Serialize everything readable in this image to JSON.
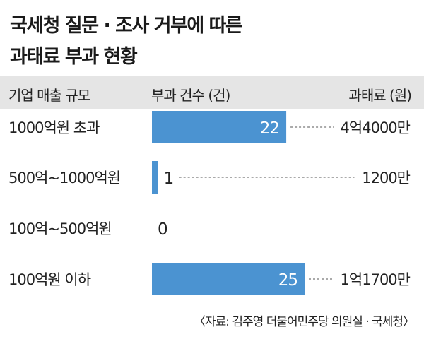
{
  "title_lines": [
    "국세청 질문 · 조사 거부에 따른",
    "과태료 부과 현황"
  ],
  "header": {
    "col1": "기업 매출 규모",
    "col2": "부과 건수 (건)",
    "col3": "과태료 (원)"
  },
  "source": "〈자료: 김주영 더불어민주당 의원실 · 국세청〉",
  "colors": {
    "bar": "#4b93d1",
    "header_bg": "#e5e5e5",
    "value_outside": "#222222",
    "value_inside": "#ffffff"
  },
  "chart_data": {
    "type": "bar",
    "orientation": "horizontal",
    "categories": [
      "1000억원 초과",
      "500억~1000억원",
      "100억~500억원",
      "100억원 이하"
    ],
    "values": [
      22,
      1,
      0,
      25
    ],
    "value_labels": [
      "22",
      "1",
      "0",
      "25"
    ],
    "fines": [
      "4억4000만",
      "1200만",
      "",
      "1억1700만"
    ],
    "xlim": [
      0,
      25
    ]
  }
}
